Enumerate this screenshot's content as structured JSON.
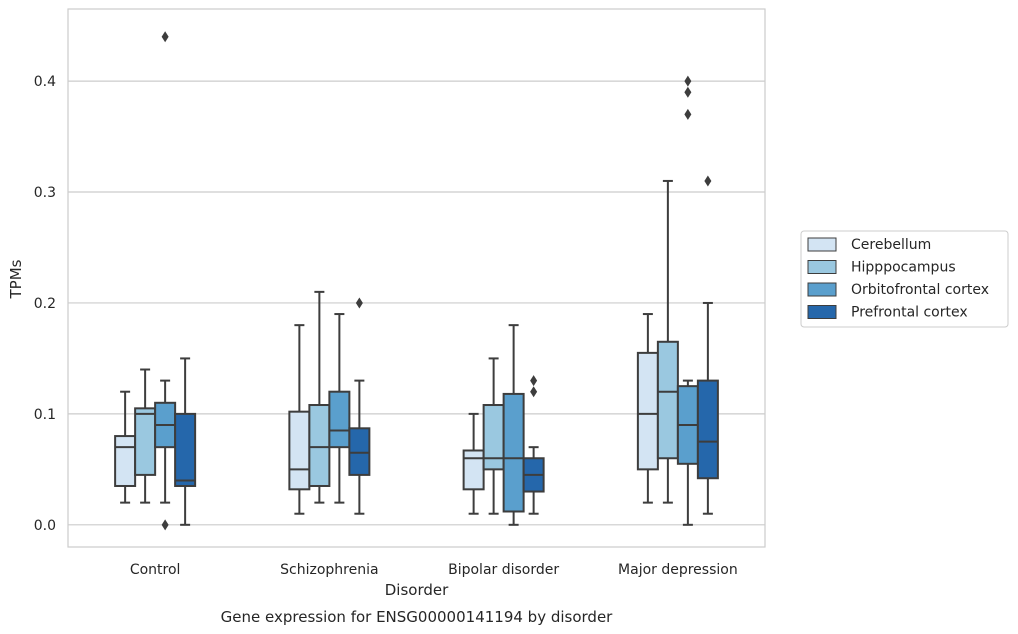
{
  "chart_data": {
    "type": "box",
    "title": "",
    "caption": "Gene expression for ENSG00000141194 by disorder",
    "xlabel": "Disorder",
    "ylabel": "TPMs",
    "categories": [
      "Control",
      "Schizophrenia",
      "Bipolar disorder",
      "Major depression"
    ],
    "ylim": [
      -0.02,
      0.465
    ],
    "yticks": [
      0.0,
      0.1,
      0.2,
      0.3,
      0.4
    ],
    "ytick_labels": [
      "0.0",
      "0.1",
      "0.2",
      "0.3",
      "0.4"
    ],
    "grid": "horizontal",
    "legend_position": "right",
    "series": [
      {
        "name": "Cerebellum",
        "color": "#d3e4f3",
        "boxes": [
          {
            "whislo": 0.02,
            "q1": 0.035,
            "med": 0.07,
            "q3": 0.08,
            "whishi": 0.12,
            "fliers": []
          },
          {
            "whislo": 0.01,
            "q1": 0.032,
            "med": 0.05,
            "q3": 0.102,
            "whishi": 0.18,
            "fliers": []
          },
          {
            "whislo": 0.01,
            "q1": 0.032,
            "med": 0.06,
            "q3": 0.067,
            "whishi": 0.1,
            "fliers": []
          },
          {
            "whislo": 0.02,
            "q1": 0.05,
            "med": 0.1,
            "q3": 0.155,
            "whishi": 0.19,
            "fliers": []
          }
        ]
      },
      {
        "name": "Hipppocampus",
        "color": "#9ac8e0",
        "boxes": [
          {
            "whislo": 0.02,
            "q1": 0.045,
            "med": 0.1,
            "q3": 0.105,
            "whishi": 0.14,
            "fliers": []
          },
          {
            "whislo": 0.02,
            "q1": 0.035,
            "med": 0.07,
            "q3": 0.108,
            "whishi": 0.21,
            "fliers": []
          },
          {
            "whislo": 0.01,
            "q1": 0.05,
            "med": 0.06,
            "q3": 0.108,
            "whishi": 0.15,
            "fliers": []
          },
          {
            "whislo": 0.02,
            "q1": 0.06,
            "med": 0.12,
            "q3": 0.165,
            "whishi": 0.31,
            "fliers": []
          }
        ]
      },
      {
        "name": "Orbitofrontal cortex",
        "color": "#5a9fcd",
        "boxes": [
          {
            "whislo": 0.02,
            "q1": 0.07,
            "med": 0.09,
            "q3": 0.11,
            "whishi": 0.13,
            "fliers": [
              0.0,
              0.44
            ]
          },
          {
            "whislo": 0.02,
            "q1": 0.07,
            "med": 0.085,
            "q3": 0.12,
            "whishi": 0.19,
            "fliers": []
          },
          {
            "whislo": 0.0,
            "q1": 0.012,
            "med": 0.06,
            "q3": 0.118,
            "whishi": 0.18,
            "fliers": []
          },
          {
            "whislo": 0.0,
            "q1": 0.055,
            "med": 0.09,
            "q3": 0.125,
            "whishi": 0.13,
            "fliers": [
              0.37,
              0.39,
              0.4
            ]
          }
        ]
      },
      {
        "name": "Prefrontal cortex",
        "color": "#2567ab",
        "boxes": [
          {
            "whislo": 0.0,
            "q1": 0.035,
            "med": 0.04,
            "q3": 0.1,
            "whishi": 0.15,
            "fliers": []
          },
          {
            "whislo": 0.01,
            "q1": 0.045,
            "med": 0.065,
            "q3": 0.087,
            "whishi": 0.13,
            "fliers": [
              0.2
            ]
          },
          {
            "whislo": 0.01,
            "q1": 0.03,
            "med": 0.045,
            "q3": 0.06,
            "whishi": 0.07,
            "fliers": [
              0.12,
              0.13
            ]
          },
          {
            "whislo": 0.01,
            "q1": 0.042,
            "med": 0.075,
            "q3": 0.13,
            "whishi": 0.2,
            "fliers": [
              0.31
            ]
          }
        ]
      }
    ]
  },
  "colors": {
    "box_edge": "#3d3d3d",
    "grid": "#cccccc",
    "frame": "#cccccc",
    "text": "#262626"
  }
}
